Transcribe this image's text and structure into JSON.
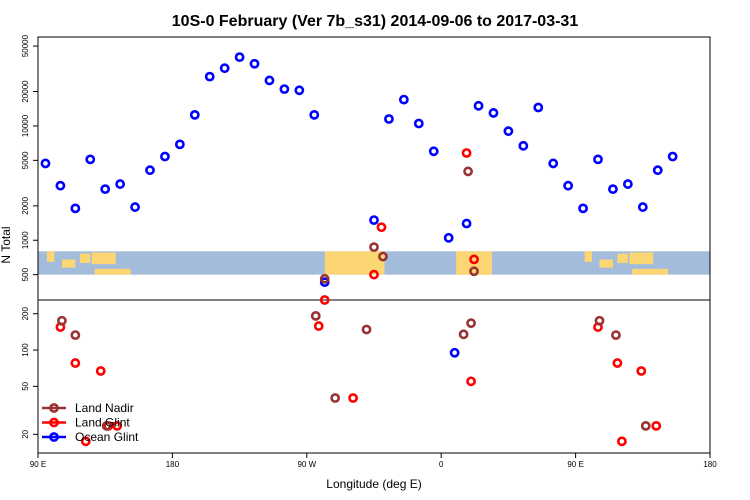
{
  "chart_data": {
    "type": "scatter",
    "title": "10S-0 February (Ver 7b_s31)   2014-09-06 to 2017-03-31",
    "xlabel": "Longitude (deg E)",
    "ylabel": "N Total",
    "x_tick_labels": [
      "90 E",
      "180",
      "90 W",
      "0",
      "90 E",
      "180"
    ],
    "x_tick_values": [
      90,
      180,
      270,
      360,
      450,
      540
    ],
    "xlim": [
      90,
      540
    ],
    "y_scale": "log",
    "panels": [
      {
        "name": "upper",
        "ylim": [
          300,
          60000
        ],
        "y_ticks": [
          500,
          1000,
          2000,
          5000,
          10000,
          20000,
          50000
        ],
        "y_tick_labels": [
          "500",
          "1000",
          "2000",
          "5000",
          "10000",
          "20000",
          "50000"
        ],
        "background_map_band": [
          500,
          800
        ]
      },
      {
        "name": "lower",
        "ylim": [
          14,
          260
        ],
        "y_ticks": [
          20,
          50,
          100,
          200
        ],
        "y_tick_labels": [
          "20",
          "50",
          "100",
          "200"
        ]
      }
    ],
    "series": [
      {
        "name": "Ocean Glint",
        "color": "#0000ff",
        "points": [
          [
            95,
            4700
          ],
          [
            105,
            3000
          ],
          [
            115,
            1900
          ],
          [
            125,
            5100
          ],
          [
            135,
            2800
          ],
          [
            145,
            3100
          ],
          [
            155,
            1950
          ],
          [
            165,
            4100
          ],
          [
            175,
            5400
          ],
          [
            185,
            6900
          ],
          [
            195,
            12500
          ],
          [
            205,
            27000
          ],
          [
            215,
            32000
          ],
          [
            225,
            40000
          ],
          [
            235,
            35000
          ],
          [
            245,
            25000
          ],
          [
            255,
            21000
          ],
          [
            265,
            20500
          ],
          [
            275,
            12500
          ],
          [
            282,
            430
          ],
          [
            315,
            1500
          ],
          [
            325,
            11500
          ],
          [
            335,
            17000
          ],
          [
            345,
            10500
          ],
          [
            355,
            6000
          ],
          [
            365,
            1050
          ],
          [
            377,
            1400
          ],
          [
            385,
            15000
          ],
          [
            395,
            13000
          ],
          [
            405,
            9000
          ],
          [
            415,
            6700
          ],
          [
            425,
            14500
          ],
          [
            435,
            4700
          ],
          [
            445,
            3000
          ],
          [
            455,
            1900
          ],
          [
            465,
            5100
          ],
          [
            475,
            2800
          ],
          [
            485,
            3100
          ],
          [
            495,
            1950
          ],
          [
            505,
            4100
          ],
          [
            515,
            5400
          ],
          [
            369,
            95
          ]
        ]
      },
      {
        "name": "Land Glint",
        "color": "#ff0000",
        "points": [
          [
            377,
            5800
          ],
          [
            382,
            680
          ],
          [
            320,
            1300
          ],
          [
            315,
            500
          ],
          [
            282,
            300
          ],
          [
            105,
            155
          ],
          [
            115,
            78
          ],
          [
            132,
            67
          ],
          [
            143,
            23.5
          ],
          [
            122,
            17.5
          ],
          [
            137,
            23.5
          ],
          [
            278,
            158
          ],
          [
            301,
            40
          ],
          [
            380,
            55
          ],
          [
            465,
            155
          ],
          [
            478,
            78
          ],
          [
            494,
            67
          ],
          [
            481,
            17.5
          ],
          [
            504,
            23.5
          ]
        ]
      },
      {
        "name": "Land Nadir",
        "color": "#993333",
        "points": [
          [
            378,
            4000
          ],
          [
            382,
            535
          ],
          [
            315,
            870
          ],
          [
            321,
            720
          ],
          [
            282,
            460
          ],
          [
            106,
            175
          ],
          [
            115,
            133
          ],
          [
            136,
            23.5
          ],
          [
            276,
            192
          ],
          [
            310,
            148
          ],
          [
            289,
            40
          ],
          [
            380,
            167
          ],
          [
            375,
            135
          ],
          [
            466,
            175
          ],
          [
            477,
            133
          ],
          [
            497,
            23.5
          ]
        ]
      }
    ],
    "legend": {
      "position": "bottom-left",
      "entries": [
        "Land Nadir",
        "Land Glint",
        "Ocean Glint"
      ]
    },
    "colors": {
      "ocean_band": "#a4bcdb",
      "land_band": "#fcd673"
    }
  }
}
